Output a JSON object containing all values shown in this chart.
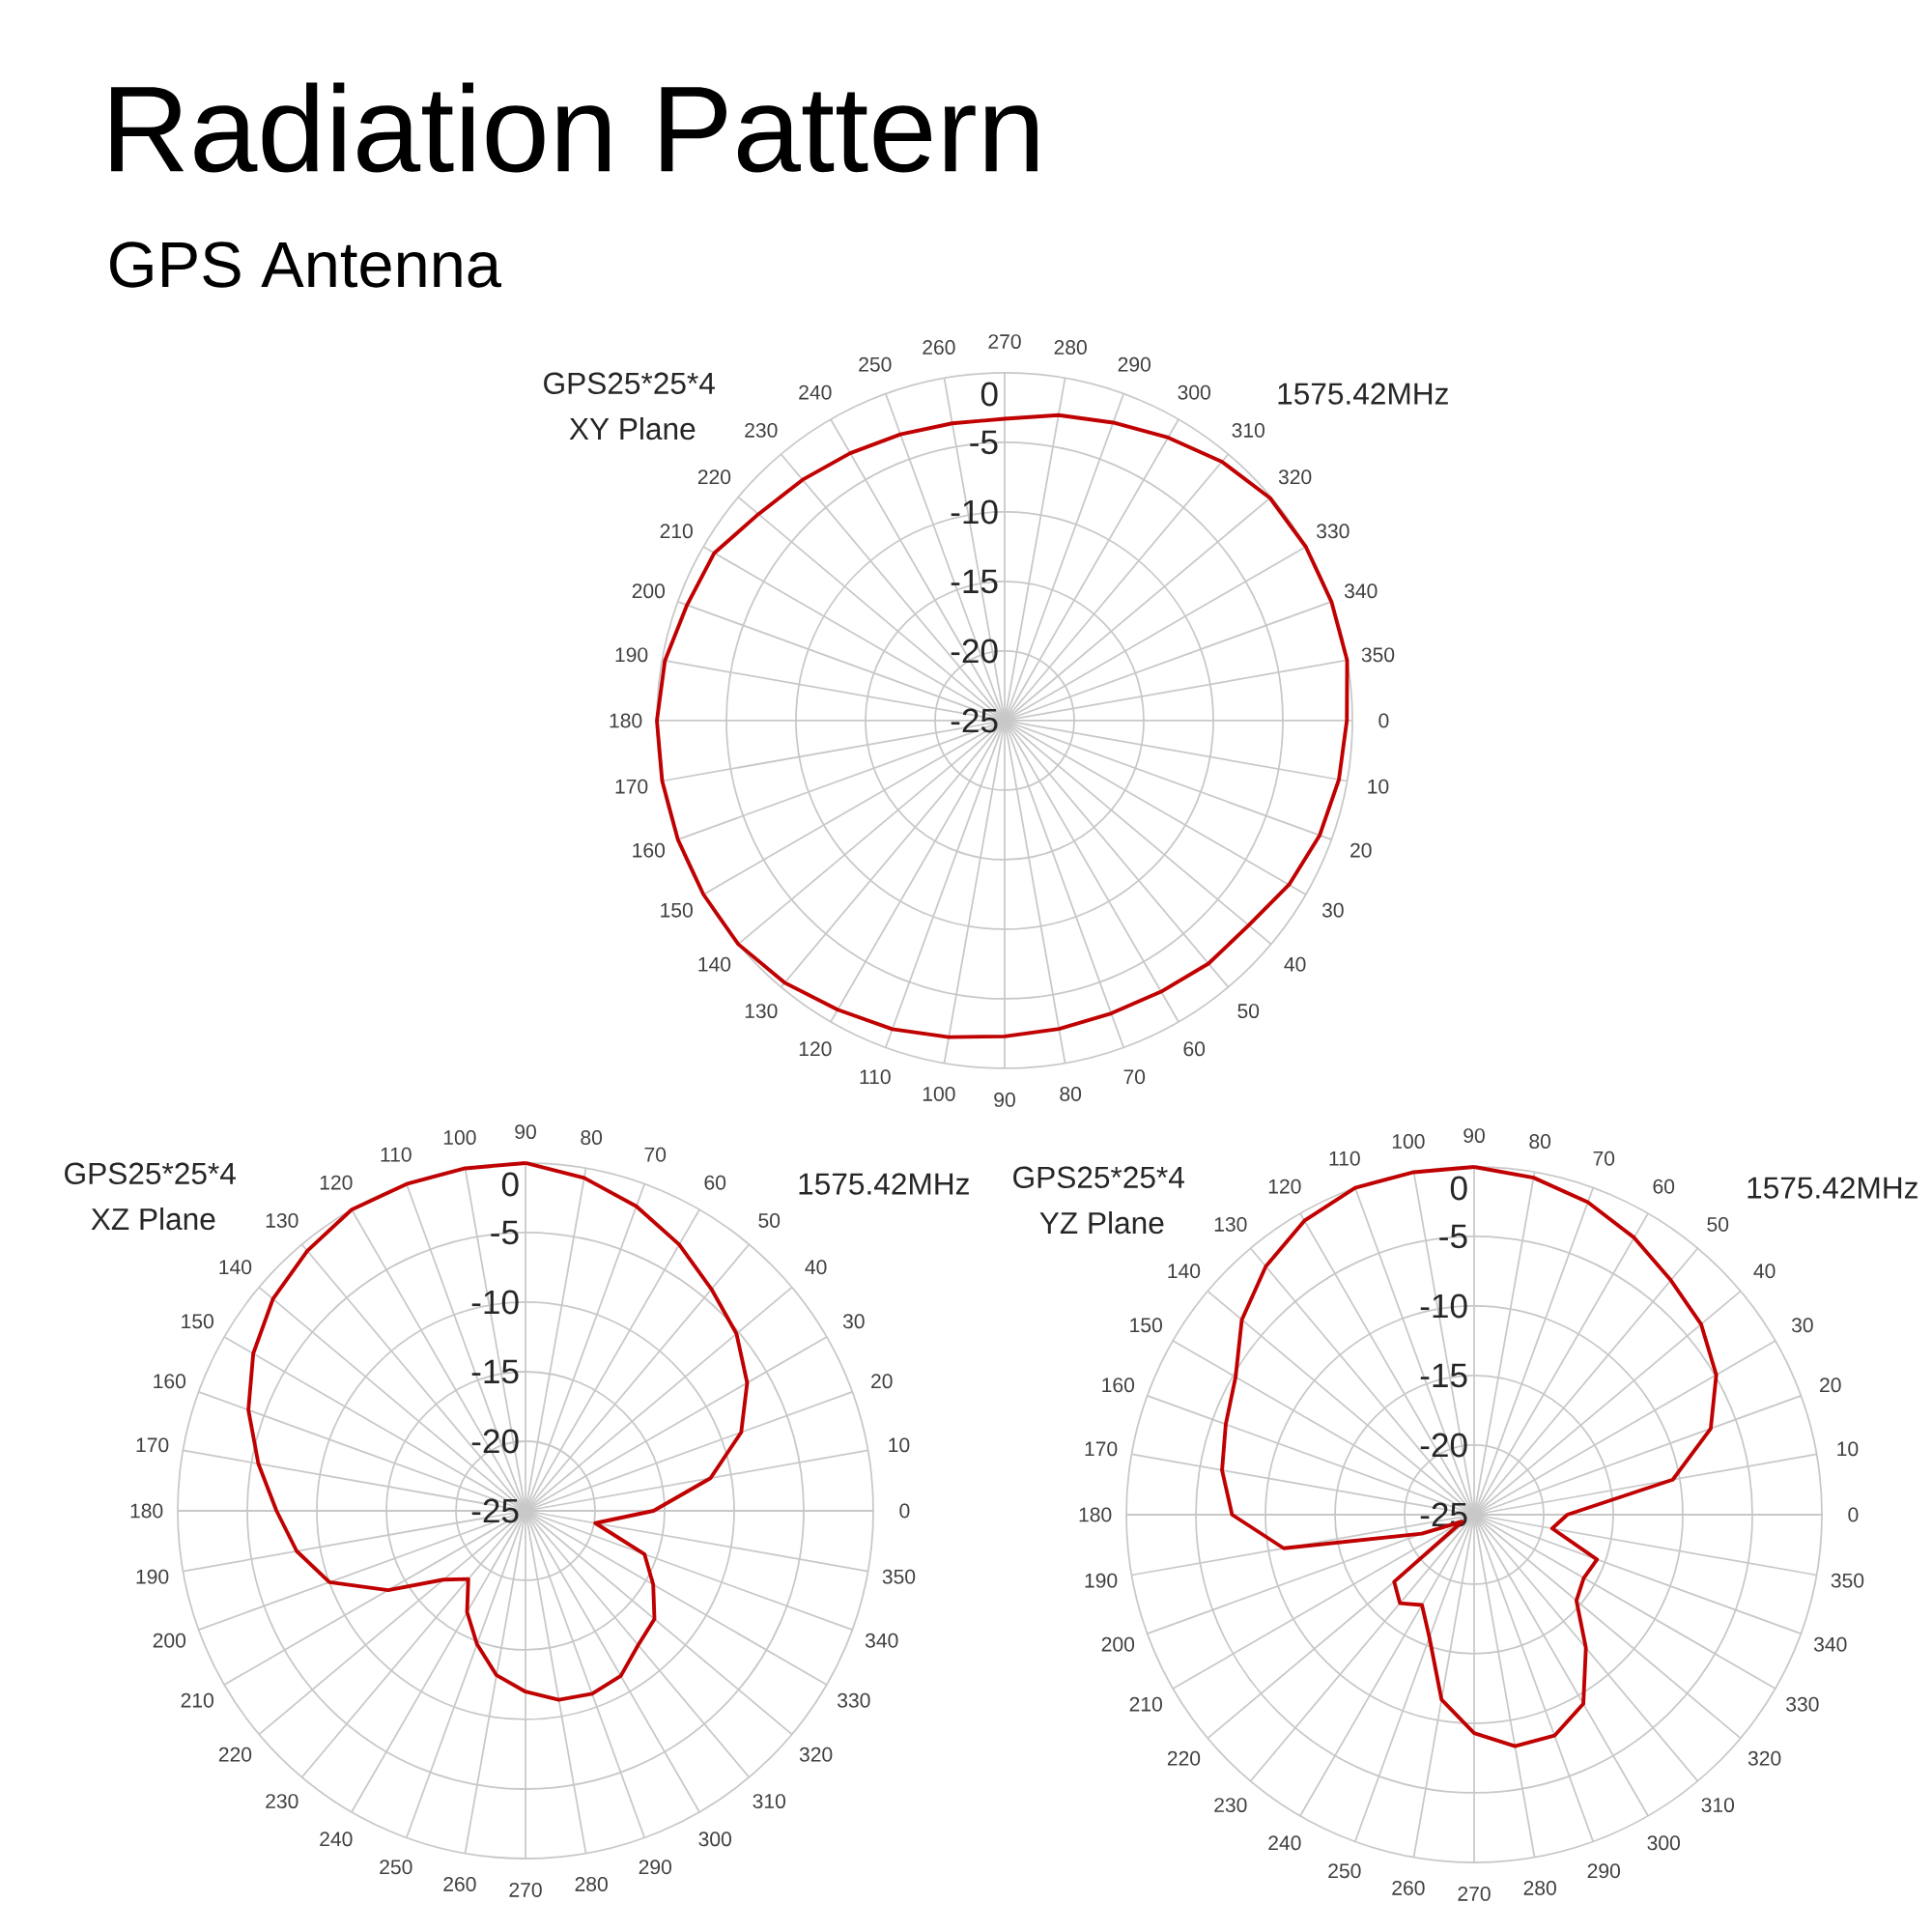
{
  "chart_data": [
    {
      "type": "radar",
      "title": "Radiation Pattern",
      "subtitle": "GPS Antenna",
      "annotations": [
        "GPS25*25*4",
        "XY Plane",
        "1575.42MHz"
      ],
      "categories": [
        "270",
        "280",
        "290",
        "300",
        "310",
        "320",
        "330",
        "340",
        "350",
        "0",
        "10",
        "20",
        "30",
        "40",
        "50",
        "60",
        "70",
        "80",
        "90",
        "100",
        "110",
        "120",
        "130",
        "140",
        "150",
        "160",
        "170",
        "180",
        "190",
        "200",
        "210",
        "220",
        "230",
        "240",
        "250",
        "260"
      ],
      "ylim": [
        -25,
        0
      ],
      "yticks": [
        -25,
        -20,
        -15,
        -10,
        -5,
        0
      ],
      "grid": true,
      "series": [
        {
          "color": "#c00000",
          "values": [
            -3.3,
            -2.7,
            -2.2,
            -1.5,
            -0.7,
            -0.1,
            0,
            0,
            0,
            -0.4,
            -0.6,
            -0.9,
            -1.4,
            -2.1,
            -2.2,
            -2.5,
            -2.6,
            -2.5,
            -2.3,
            -1.9,
            -1.4,
            -1.0,
            -0.4,
            0,
            0,
            0,
            0,
            0,
            -0.2,
            -0.7,
            -0.9,
            -1.9,
            -2.4,
            -2.8,
            -3.1,
            -3.3
          ]
        }
      ]
    },
    {
      "type": "radar",
      "annotations": [
        "GPS25*25*4",
        "XZ Plane",
        "1575.42MHz"
      ],
      "categories": [
        "90",
        "80",
        "70",
        "60",
        "50",
        "40",
        "30",
        "20",
        "10",
        "0",
        "350",
        "340",
        "330",
        "320",
        "310",
        "300",
        "290",
        "280",
        "270",
        "260",
        "250",
        "240",
        "230",
        "220",
        "210",
        "200",
        "190",
        "180",
        "170",
        "160",
        "150",
        "140",
        "130",
        "120",
        "110",
        "100"
      ],
      "ylim": [
        -25,
        0
      ],
      "yticks": [
        -25,
        -20,
        -15,
        -10,
        -5,
        0
      ],
      "grid": true,
      "series": [
        {
          "color": "#c00000",
          "values": [
            0,
            -0.7,
            -1.7,
            -2.9,
            -4.2,
            -5.2,
            -6.6,
            -8.5,
            -11.5,
            -15.8,
            -19.9,
            -15.9,
            -14.4,
            -12.9,
            -12.4,
            -11.3,
            -11.0,
            -11.2,
            -12.0,
            -13.0,
            -14.8,
            -16.6,
            -18.6,
            -17.3,
            -13.6,
            -10.0,
            -8.3,
            -7.1,
            -5.5,
            -3.8,
            -2.4,
            -1.3,
            -0.6,
            0,
            0,
            0
          ]
        }
      ]
    },
    {
      "type": "radar",
      "annotations": [
        "GPS25*25*4",
        "YZ Plane",
        "1575.42MHz"
      ],
      "categories": [
        "90",
        "80",
        "70",
        "60",
        "50",
        "40",
        "30",
        "20",
        "10",
        "0",
        "350",
        "340",
        "330",
        "320",
        "310",
        "300",
        "290",
        "280",
        "270",
        "260",
        "250",
        "240",
        "230",
        "220",
        "210",
        "200",
        "190",
        "180",
        "170",
        "160",
        "150",
        "140",
        "130",
        "120",
        "110",
        "100"
      ],
      "ylim": [
        -25,
        0
      ],
      "yticks": [
        -25,
        -20,
        -15,
        -10,
        -5,
        0
      ],
      "grid": true,
      "series": [
        {
          "color": "#c00000",
          "values": [
            0,
            -0.4,
            -1.1,
            -2.0,
            -3.0,
            -3.7,
            -4.9,
            -6.9,
            -10.5,
            -18.3,
            -19.3,
            -15.6,
            -15.9,
            -15.4,
            -12.5,
            -9.3,
            -8.1,
            -8.1,
            -9.3,
            -11.5,
            -15.6,
            -17.5,
            -16.7,
            -17.5,
            -24,
            -21,
            -11.1,
            -7.6,
            -6.6,
            -6.0,
            -5.2,
            -3.2,
            -1.7,
            -0.6,
            0,
            0
          ]
        }
      ]
    }
  ]
}
